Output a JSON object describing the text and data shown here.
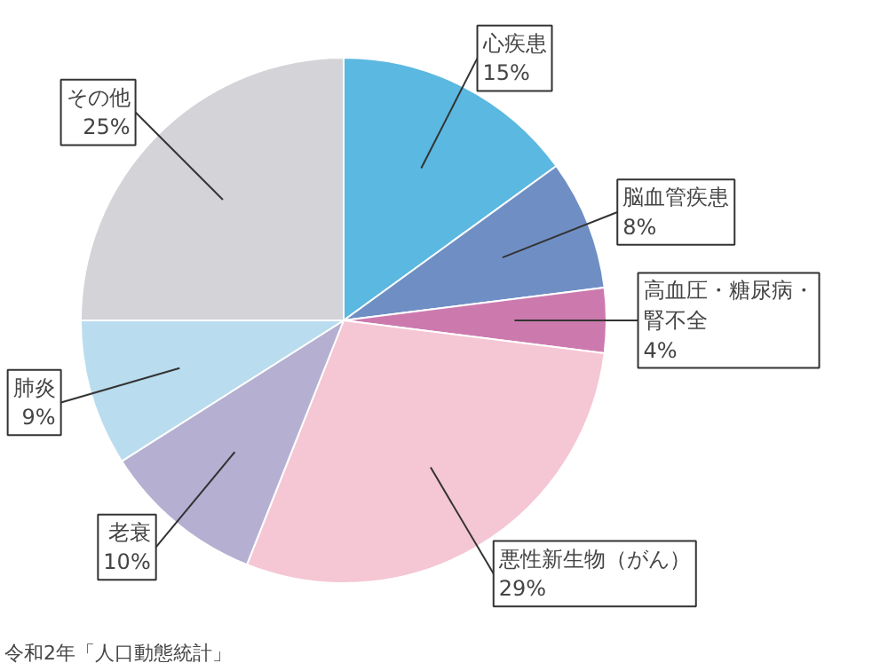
{
  "chart_data": {
    "type": "pie",
    "categories": [
      "心疾患",
      "脳血管疾患",
      "高血圧・糖尿病・腎不全",
      "悪性新生物（がん）",
      "老衰",
      "肺炎",
      "その他"
    ],
    "values": [
      15,
      8,
      4,
      29,
      10,
      9,
      25
    ],
    "value_labels": [
      "15%",
      "8%",
      "4%",
      "29%",
      "10%",
      "9%",
      "25%"
    ],
    "colors": [
      "#5bb8e0",
      "#6f8fc4",
      "#cc7aae",
      "#f5c6d4",
      "#b5b0d2",
      "#b9dcee",
      "#d3d3d8"
    ],
    "annotations": [
      "令和2年「人口動態統計」"
    ]
  }
}
